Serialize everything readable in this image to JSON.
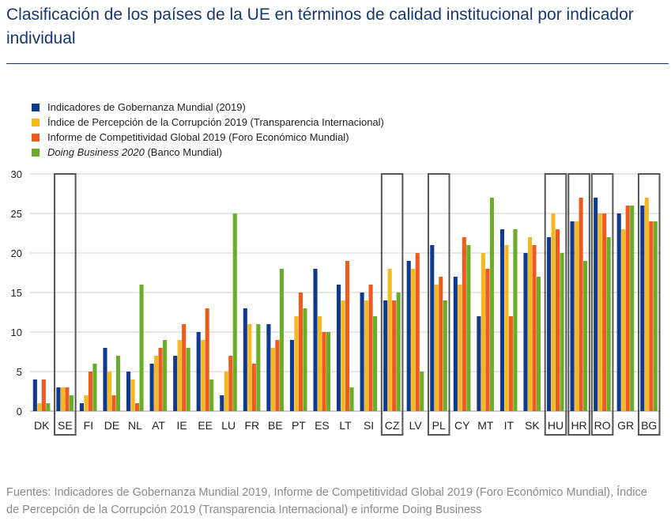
{
  "title": "Clasificación de los países de la UE en términos de calidad institucional por indicador individual",
  "source": "Fuentes: Indicadores de Gobernanza Mundial 2019, Informe de Competitividad Global 2019 (Foro Económico Mundial), Índice de Percepción de la Corrupción 2019 (Transparencia Internacional) e informe Doing Business",
  "legend": [
    {
      "label": "Indicadores de Gobernanza Mundial (2019)",
      "color": "#103a8e"
    },
    {
      "label": "Índice de Percepción de la Corrupción 2019 (Transparencia Internacional)",
      "color": "#f5b820"
    },
    {
      "label": "Informe de Competitividad Global 2019 (Foro Económico Mundial)",
      "color": "#ef5a1e"
    },
    {
      "label_italic": "Doing Business 2020",
      "label_rest": " (Banco Mundial)",
      "color": "#69ad28"
    }
  ],
  "chart_data": {
    "type": "bar",
    "categories": [
      "DK",
      "SE",
      "FI",
      "DE",
      "NL",
      "AT",
      "IE",
      "EE",
      "LU",
      "FR",
      "BE",
      "PT",
      "ES",
      "LT",
      "SI",
      "CZ",
      "LV",
      "PL",
      "CY",
      "MT",
      "IT",
      "SK",
      "HU",
      "HR",
      "RO",
      "GR",
      "BG"
    ],
    "highlighted": [
      "SE",
      "CZ",
      "PL",
      "HU",
      "HR",
      "RO",
      "BG"
    ],
    "ylim": [
      0,
      30
    ],
    "yticks": [
      0,
      5,
      10,
      15,
      20,
      25,
      30
    ],
    "grid": true,
    "legend_position": "top-left",
    "series": [
      {
        "name": "Indicadores de Gobernanza Mundial (2019)",
        "color": "#103a8e",
        "values": [
          4,
          3,
          1,
          8,
          5,
          6,
          7,
          10,
          2,
          13,
          11,
          9,
          18,
          16,
          15,
          14,
          19,
          21,
          17,
          12,
          23,
          20,
          22,
          24,
          27,
          25,
          26
        ]
      },
      {
        "name": "Índice de Percepción de la Corrupción 2019 (Transparencia Internacional)",
        "color": "#f5b820",
        "values": [
          1,
          3,
          2,
          5,
          4,
          7,
          9,
          9,
          5,
          11,
          8,
          12,
          12,
          14,
          14,
          18,
          18,
          16,
          16,
          20,
          21,
          22,
          25,
          24,
          25,
          23,
          27
        ]
      },
      {
        "name": "Informe de Competitividad Global 2019 (Foro Económico Mundial)",
        "color": "#ef5a1e",
        "values": [
          4,
          3,
          5,
          2,
          1,
          8,
          11,
          13,
          7,
          6,
          9,
          15,
          10,
          19,
          16,
          14,
          20,
          17,
          22,
          18,
          12,
          21,
          23,
          27,
          25,
          26,
          24
        ]
      },
      {
        "name": "Doing Business 2020 (Banco Mundial)",
        "color": "#69ad28",
        "values": [
          1,
          2,
          6,
          7,
          16,
          9,
          8,
          4,
          25,
          11,
          18,
          13,
          10,
          3,
          12,
          15,
          5,
          14,
          21,
          27,
          23,
          17,
          20,
          19,
          22,
          26,
          24
        ]
      }
    ]
  }
}
